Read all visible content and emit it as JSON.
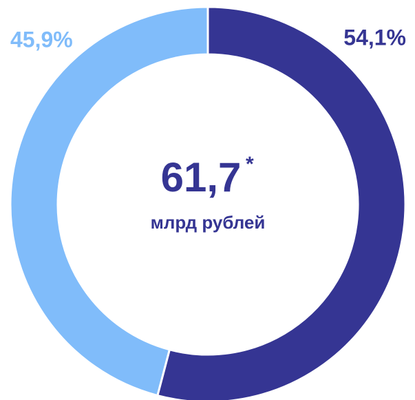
{
  "chart_data": {
    "type": "donut",
    "values": [
      54.1,
      45.9
    ],
    "value_labels": [
      "54,1%",
      "45,9%"
    ],
    "colors": [
      "#353593",
      "#80bcfa"
    ],
    "center_value": "61,7",
    "center_note": "*",
    "center_label": "млрд рублей"
  }
}
